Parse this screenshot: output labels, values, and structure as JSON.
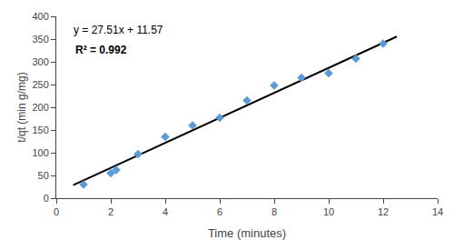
{
  "chart_data": {
    "type": "scatter",
    "series": [
      {
        "type": "scatter",
        "color": "#5B9BD5",
        "marker": "diamond",
        "x": [
          1,
          2,
          2.2,
          3,
          4,
          5,
          6,
          7,
          8,
          9,
          10,
          11,
          12
        ],
        "values": [
          30,
          55,
          62,
          97,
          135,
          160,
          177,
          215,
          248,
          265,
          275,
          307,
          340
        ]
      },
      {
        "type": "line",
        "color": "black",
        "line_style": "solid",
        "x": [
          0.62,
          12.5
        ],
        "values": [
          28.6262,
          355.445
        ]
      }
    ],
    "annotations": [
      "y = 27.51x + 11.57",
      "R² = 0.992"
    ],
    "xlabel": "Time (minutes)",
    "ylabel": "t/qt (min g/mg)",
    "xlim": [
      0,
      14
    ],
    "ylim": [
      0,
      400
    ],
    "xticks": [
      0,
      2,
      4,
      6,
      8,
      10,
      12,
      14
    ],
    "yticks": [
      0,
      50,
      100,
      150,
      200,
      250,
      300,
      350,
      400
    ],
    "grid": false
  }
}
